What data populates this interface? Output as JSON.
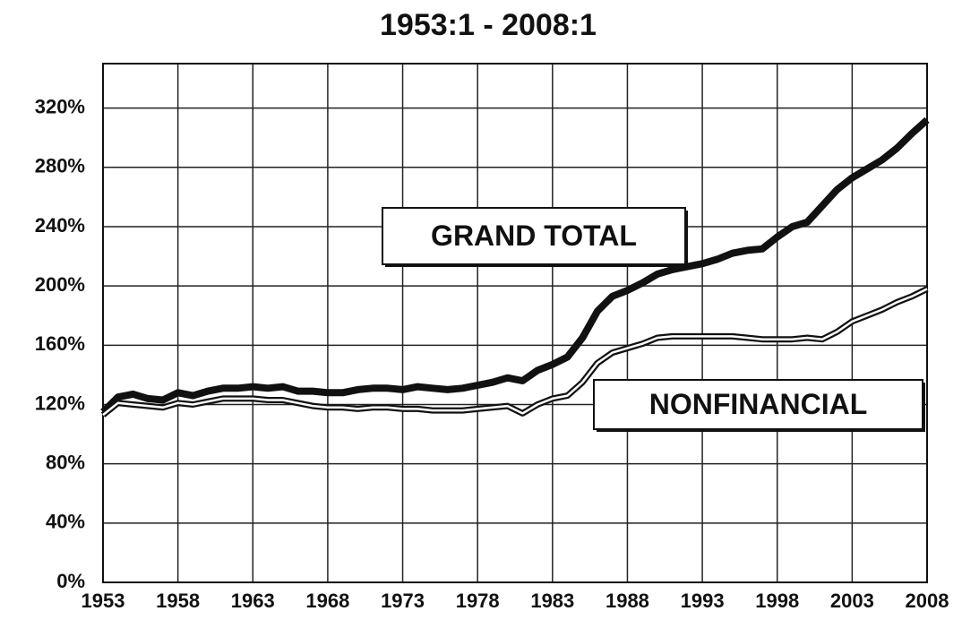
{
  "chart_data": {
    "type": "line",
    "title": "1953:1 - 2008:1",
    "x": [
      1953,
      1954,
      1955,
      1956,
      1957,
      1958,
      1959,
      1960,
      1961,
      1962,
      1963,
      1964,
      1965,
      1966,
      1967,
      1968,
      1969,
      1970,
      1971,
      1972,
      1973,
      1974,
      1975,
      1976,
      1977,
      1978,
      1979,
      1980,
      1981,
      1982,
      1983,
      1984,
      1985,
      1986,
      1987,
      1988,
      1989,
      1990,
      1991,
      1992,
      1993,
      1994,
      1995,
      1996,
      1997,
      1998,
      1999,
      2000,
      2001,
      2002,
      2003,
      2004,
      2005,
      2006,
      2007,
      2008
    ],
    "series": [
      {
        "name": "GRAND TOTAL",
        "color": "#111111",
        "style": "solid",
        "values": [
          115,
          125,
          127,
          124,
          123,
          128,
          126,
          129,
          131,
          131,
          132,
          131,
          132,
          129,
          129,
          128,
          128,
          130,
          131,
          131,
          130,
          132,
          131,
          130,
          131,
          133,
          135,
          138,
          136,
          143,
          147,
          152,
          165,
          183,
          193,
          197,
          202,
          208,
          211,
          213,
          215,
          218,
          222,
          224,
          225,
          233,
          240,
          243,
          254,
          265,
          273,
          279,
          285,
          293,
          303,
          312
        ]
      },
      {
        "name": "NONFINANCIAL",
        "color": "#111111",
        "style": "double",
        "values": [
          113,
          121,
          120,
          119,
          118,
          121,
          120,
          122,
          124,
          124,
          124,
          123,
          123,
          121,
          119,
          118,
          118,
          117,
          118,
          118,
          117,
          117,
          116,
          116,
          116,
          117,
          118,
          119,
          114,
          120,
          124,
          126,
          135,
          148,
          155,
          158,
          161,
          165,
          166,
          166,
          166,
          166,
          166,
          165,
          164,
          164,
          164,
          165,
          164,
          169,
          176,
          180,
          184,
          189,
          193,
          198
        ]
      }
    ],
    "xlim": [
      1953,
      2008
    ],
    "xticks": [
      1953,
      1958,
      1963,
      1968,
      1973,
      1978,
      1983,
      1988,
      1993,
      1998,
      2003,
      2008
    ],
    "ylim": [
      0,
      350
    ],
    "yticks": [
      {
        "value": 0,
        "label": "0%"
      },
      {
        "value": 40,
        "label": "40%"
      },
      {
        "value": 80,
        "label": "80%"
      },
      {
        "value": 120,
        "label": "120%"
      },
      {
        "value": 160,
        "label": "160%"
      },
      {
        "value": 200,
        "label": "200%"
      },
      {
        "value": 240,
        "label": "240%"
      },
      {
        "value": 280,
        "label": "280%"
      },
      {
        "value": 320,
        "label": "320%"
      }
    ],
    "grid": true
  }
}
